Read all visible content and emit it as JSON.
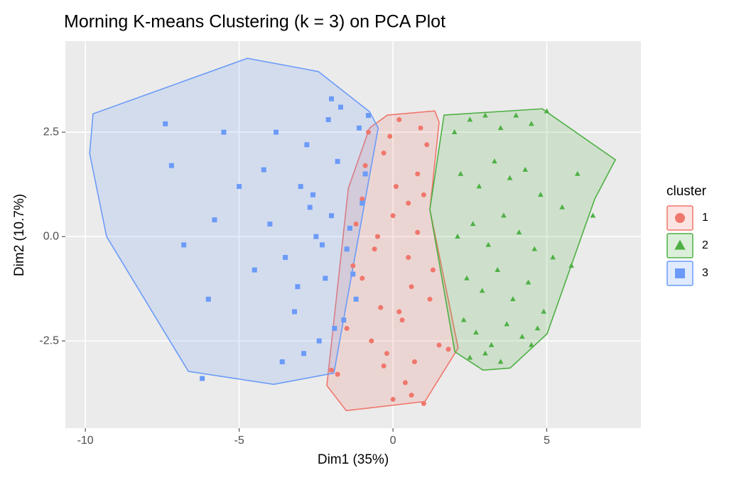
{
  "chart_data": {
    "type": "scatter",
    "title": "Morning K-means Clustering (k = 3) on PCA Plot",
    "x_label": "Dim1 (35%)",
    "y_label": "Dim2 (10.7%)",
    "legend_title": "cluster",
    "legend": "right",
    "grid": true,
    "xlim": [
      -10.65,
      8.06
    ],
    "ylim": [
      -4.59,
      4.68
    ],
    "xticks": [
      -10,
      -5,
      0,
      5
    ],
    "yticks": [
      {
        "value": -2.5,
        "label": "-2.5"
      },
      {
        "value": 0,
        "label": "0.0"
      },
      {
        "value": 2.5,
        "label": "2.5"
      }
    ],
    "series": [
      {
        "name": "1",
        "color": "#F0776C",
        "shape": "circle",
        "x": [
          -0.5,
          0,
          0.5,
          1,
          -1,
          -0.3,
          0.3,
          0.8,
          1.2,
          -0.8,
          -0.2,
          0.2,
          0.7,
          -1.2,
          -0.6,
          0.1,
          0.6,
          1.1,
          -1.5,
          -0.9,
          -0.4,
          0.4,
          0.9,
          -1.8,
          -1.3,
          0,
          0.5,
          1.3,
          -0.7,
          -0.1,
          1.5,
          -2,
          0.2,
          -1,
          0.8,
          1.8,
          -0.3,
          0.6,
          -1.6,
          1
        ],
        "y": [
          0,
          0.5,
          -0.5,
          1,
          -1,
          2,
          -2,
          1.5,
          -1.5,
          2.5,
          -2.8,
          2.8,
          -3,
          0.3,
          -0.3,
          1.2,
          -1.2,
          2.2,
          -2.2,
          1.7,
          -1.7,
          -3.5,
          2.6,
          -3.3,
          -0.7,
          -3.9,
          0.8,
          -0.8,
          -2.5,
          2.4,
          -2.6,
          -3.2,
          -1.8,
          0.9,
          0.1,
          -2.7,
          -3.1,
          -3.8,
          -2.0,
          -4.0
        ],
        "hull": {
          "x": [
            -0.18,
            1.36,
            1.5,
            1.2,
            2.12,
            1.04,
            -1.52,
            -2.15,
            -1.45,
            -0.76
          ],
          "y": [
            2.91,
            3.01,
            2.74,
            0.65,
            -2.67,
            -3.95,
            -4.17,
            -3.57,
            1.16,
            2.6
          ]
        }
      },
      {
        "name": "2",
        "color": "#4FB045",
        "shape": "triangle",
        "x": [
          2,
          2.5,
          3,
          3.5,
          4,
          4.5,
          5,
          2.2,
          2.8,
          3.3,
          3.8,
          4.3,
          4.8,
          5.5,
          6,
          2.1,
          2.6,
          3.1,
          3.6,
          4.1,
          4.6,
          5.2,
          5.8,
          6.5,
          2.4,
          2.9,
          3.4,
          3.9,
          4.4,
          4.9,
          2.3,
          2.7,
          3.2,
          3.7,
          4.2,
          4.7,
          2.5,
          3,
          3.5,
          4.5
        ],
        "y": [
          2.5,
          2.8,
          2.9,
          2.6,
          2.9,
          2.7,
          3,
          1.5,
          1.2,
          1.8,
          1.4,
          1.6,
          1,
          0.7,
          1.5,
          0,
          0.3,
          -0.2,
          0.5,
          0.1,
          -0.3,
          -0.5,
          -0.7,
          0.5,
          -1,
          -1.3,
          -0.8,
          -1.5,
          -1.1,
          -1.8,
          -2,
          -2.3,
          -2.6,
          -2.1,
          -2.4,
          -2.2,
          -2.9,
          -2.8,
          -3,
          -2.6
        ],
        "hull": {
          "x": [
            1.66,
            4.85,
            7.23,
            6.56,
            5.01,
            3.81,
            2.93,
            2.01,
            1.2
          ],
          "y": [
            2.91,
            3.06,
            1.84,
            0.9,
            -2.33,
            -3.15,
            -3.2,
            -2.76,
            0.65
          ]
        }
      },
      {
        "name": "3",
        "color": "#6B9BF8",
        "shape": "square",
        "x": [
          -2.5,
          -2,
          -1.5,
          -1,
          -3,
          -2.2,
          -1.8,
          -1.2,
          -3.5,
          -2.8,
          -2.1,
          -1.6,
          -0.9,
          -4,
          -3.2,
          -2.4,
          -1.7,
          -1.1,
          -5,
          -4.5,
          -3.8,
          -2.9,
          -2.3,
          -1.4,
          -6,
          -5.5,
          -7.4,
          -7.2,
          -6.2,
          -5.8,
          -6.8,
          -4.2,
          -3.6,
          -2.7,
          -2,
          -1.3,
          -0.8,
          -3.1,
          -2.6,
          -1.9
        ],
        "y": [
          0,
          0.5,
          -0.3,
          0.8,
          1.2,
          -1,
          1.8,
          -1.5,
          -0.5,
          2.2,
          2.8,
          -2,
          1.5,
          0.3,
          -1.8,
          -2.5,
          3.1,
          2.6,
          1.2,
          -0.8,
          2.5,
          -2.8,
          -0.2,
          0.2,
          -1.5,
          2.5,
          2.7,
          1.7,
          -3.4,
          0.4,
          -0.2,
          1.6,
          -3,
          0.7,
          3.3,
          -0.9,
          2.9,
          -1.2,
          1,
          -2.2
        ],
        "hull": {
          "x": [
            -4.73,
            -2.84,
            -2.42,
            -0.76,
            -0.48,
            -1.92,
            -3.88,
            -6.65,
            -9.31,
            -9.86,
            -9.75
          ],
          "y": [
            4.27,
            4.01,
            3.95,
            2.99,
            2.6,
            -3.27,
            -3.54,
            -3.23,
            0,
            1.99,
            2.94
          ]
        }
      }
    ]
  }
}
